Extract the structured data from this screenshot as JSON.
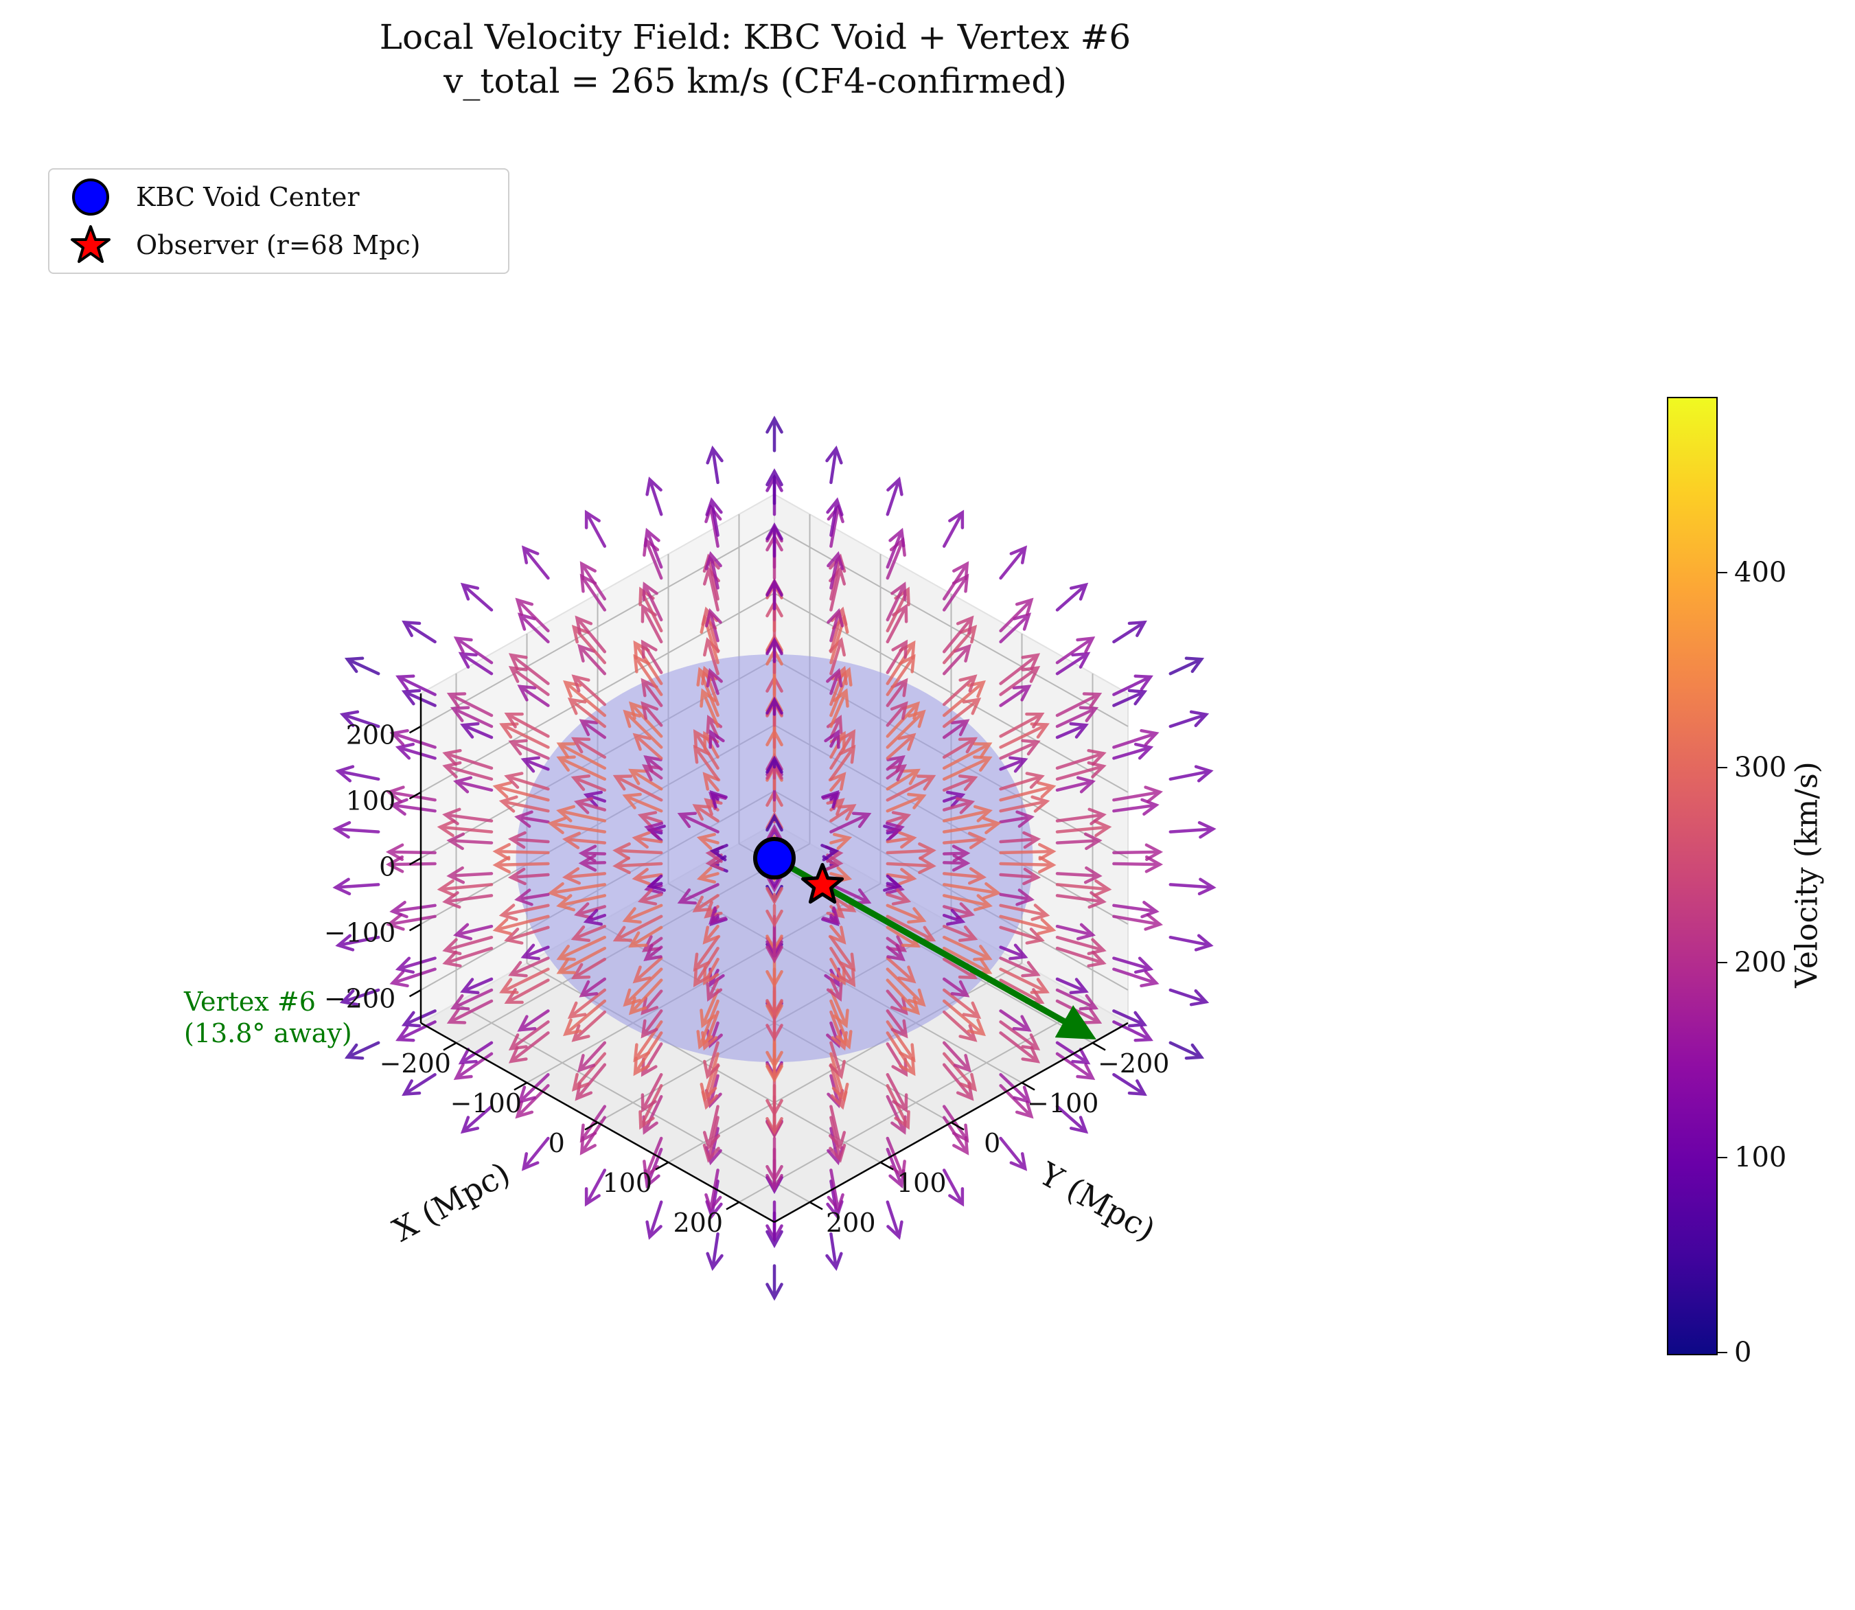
{
  "chart_data": {
    "type": "quiver3d",
    "title": "Local Velocity Field: KBC Void + Vertex #6",
    "subtitle": "v_total = 265 km/s (CF4-confirmed)",
    "xlabel": "X (Mpc)",
    "ylabel": "Y (Mpc)",
    "zlabel": "",
    "xlim": [
      -250,
      250
    ],
    "ylim": [
      -250,
      250
    ],
    "zlim": [
      -250,
      250
    ],
    "x_ticks": [
      "−200",
      "−100",
      "0",
      "100",
      "200"
    ],
    "y_ticks": [
      "−200",
      "−100",
      "0",
      "100",
      "200"
    ],
    "z_ticks": [
      "−200",
      "−100",
      "0",
      "100",
      "200"
    ],
    "grid": true,
    "legend_position": "top-left",
    "legend": [
      {
        "label": "KBC Void Center",
        "marker": "circle",
        "color": "#0000ff"
      },
      {
        "label": "Observer (r=68 Mpc)",
        "marker": "star",
        "color": "#ff0000"
      }
    ],
    "void_center": [
      0,
      0,
      0
    ],
    "void_radius_mpc": 300,
    "observer_distance_mpc": 68,
    "field": "radial outflow from KBC void center",
    "vertex_arrow": {
      "label_line1": "Vertex #6",
      "label_line2": "(13.8° away)",
      "color": "#007a00"
    },
    "colorbar": {
      "label": "Velocity (km/s)",
      "range": [
        0,
        490
      ],
      "ticks": [
        0,
        100,
        200,
        300,
        400
      ],
      "tick_labels": [
        "0",
        "100",
        "200",
        "300",
        "400"
      ],
      "colormap": "plasma"
    }
  }
}
